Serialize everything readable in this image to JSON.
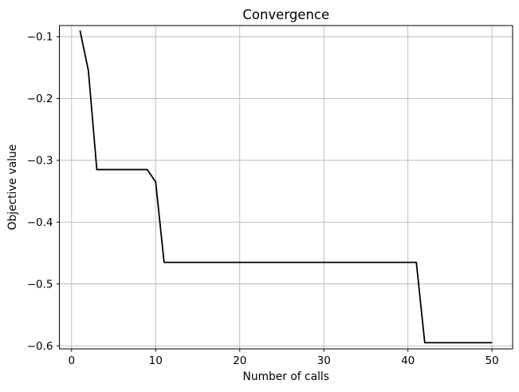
{
  "chart_data": {
    "type": "line",
    "title": "Convergence",
    "xlabel": "Number of calls",
    "ylabel": "Objective value",
    "line_color": "#000000",
    "line_width": 1.8,
    "background_color": "#ffffff",
    "grid": true,
    "grid_color": "#b0b0b0",
    "spine_color": "#000000",
    "legend": "none",
    "xlim": [
      -1.45,
      52.45
    ],
    "ylim": [
      -0.605,
      -0.082
    ],
    "xticks": [
      {
        "v": 0,
        "label": "0"
      },
      {
        "v": 10,
        "label": "10"
      },
      {
        "v": 20,
        "label": "20"
      },
      {
        "v": 30,
        "label": "30"
      },
      {
        "v": 40,
        "label": "40"
      },
      {
        "v": 50,
        "label": "50"
      }
    ],
    "yticks": [
      {
        "v": -0.1,
        "label": "−0.1"
      },
      {
        "v": -0.2,
        "label": "−0.2"
      },
      {
        "v": -0.3,
        "label": "−0.3"
      },
      {
        "v": -0.4,
        "label": "−0.4"
      },
      {
        "v": -0.5,
        "label": "−0.5"
      },
      {
        "v": -0.6,
        "label": "−0.6"
      }
    ],
    "series": [
      {
        "name": "objective-value-per-call",
        "x": [
          1,
          2,
          3,
          4,
          5,
          6,
          7,
          8,
          9,
          10,
          11,
          12,
          13,
          14,
          15,
          16,
          17,
          18,
          19,
          20,
          21,
          22,
          23,
          24,
          25,
          26,
          27,
          28,
          29,
          30,
          31,
          32,
          33,
          34,
          35,
          36,
          37,
          38,
          39,
          40,
          41,
          42,
          43,
          44,
          45,
          46,
          47,
          48,
          49,
          50
        ],
        "y": [
          -0.09,
          -0.155,
          -0.315,
          -0.315,
          -0.315,
          -0.315,
          -0.315,
          -0.315,
          -0.315,
          -0.335,
          -0.465,
          -0.465,
          -0.465,
          -0.465,
          -0.465,
          -0.465,
          -0.465,
          -0.465,
          -0.465,
          -0.465,
          -0.465,
          -0.465,
          -0.465,
          -0.465,
          -0.465,
          -0.465,
          -0.465,
          -0.465,
          -0.465,
          -0.465,
          -0.465,
          -0.465,
          -0.465,
          -0.465,
          -0.465,
          -0.465,
          -0.465,
          -0.465,
          -0.465,
          -0.465,
          -0.465,
          -0.595,
          -0.595,
          -0.595,
          -0.595,
          -0.595,
          -0.595,
          -0.595,
          -0.595,
          -0.595
        ]
      }
    ]
  }
}
